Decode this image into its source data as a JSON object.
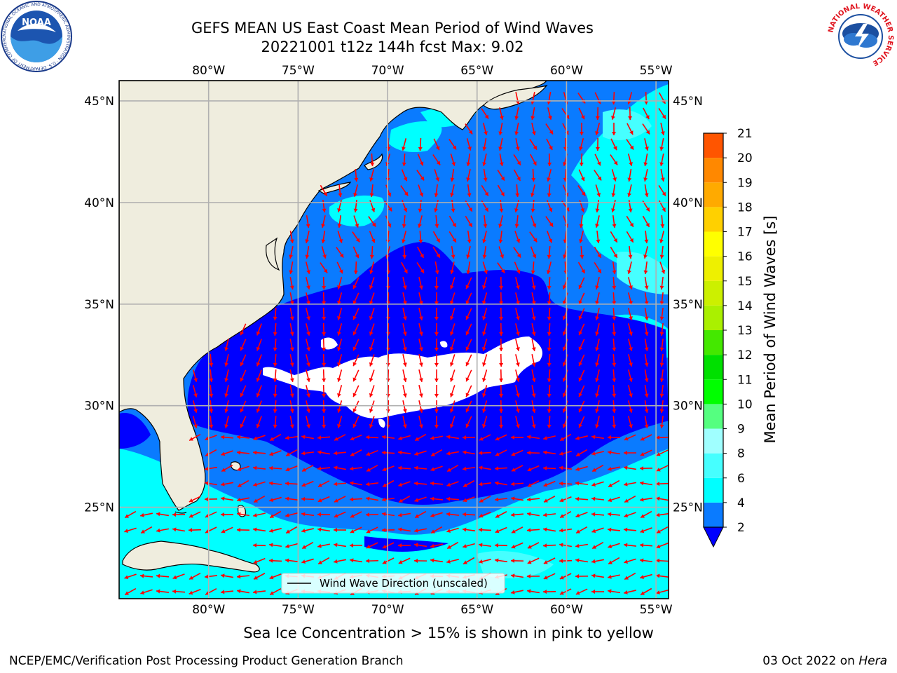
{
  "title": {
    "line1": "GEFS MEAN US East Coast Mean Period of Wind Waves",
    "line2": "20221001 t12z 144h fcst   Max: 9.02"
  },
  "map": {
    "lon_labels": [
      "80°W",
      "75°W",
      "70°W",
      "65°W",
      "60°W",
      "55°W"
    ],
    "lon_values": [
      -80,
      -75,
      -70,
      -65,
      -60,
      -55
    ],
    "lat_labels": [
      "45°N",
      "40°N",
      "35°N",
      "30°N",
      "25°N"
    ],
    "lat_values": [
      45,
      40,
      35,
      30,
      25
    ],
    "extent": {
      "lon_min": -85,
      "lon_max": -54.3,
      "lat_min": 20.5,
      "lat_max": 46
    },
    "legend_label": "Wind Wave Direction (unscaled)",
    "colors": {
      "land": "#efedde",
      "ocean_lt2": "#0000ff",
      "ocean_2_4": "#0a7bff",
      "ocean_4_6": "#00ffff",
      "arrow": "#ff0000",
      "gridline": "#b0b0b0"
    }
  },
  "colorbar": {
    "label": "Mean Period of Wind Waves [s]",
    "ticks": [
      "2",
      "4",
      "6",
      "8",
      "9",
      "10",
      "11",
      "12",
      "13",
      "14",
      "15",
      "16",
      "17",
      "18",
      "19",
      "20",
      "21"
    ],
    "colors": [
      "#0a7bff",
      "#00ffff",
      "#46ffff",
      "#a0ffff",
      "#55ff80",
      "#00ff00",
      "#00e000",
      "#44e800",
      "#aaf000",
      "#ccf000",
      "#eef000",
      "#ffff00",
      "#ffd000",
      "#ffaa00",
      "#ff8800",
      "#ff5500",
      "#ff2a00",
      "#ff0000"
    ],
    "underflow_color": "#0000ff"
  },
  "bottom_note": "Sea Ice Concentration > 15% is shown in pink to yellow",
  "footer": {
    "left": "NCEP/EMC/Verification Post Processing Product Generation Branch",
    "right_date": "03 Oct 2022 on ",
    "right_host": "Hera"
  },
  "logos": {
    "left": {
      "icon": "noaa-logo",
      "text": "NOAA",
      "ring_text": "NATIONAL OCEANIC AND ATMOSPHERIC ADMINISTRATION · U.S. DEPARTMENT OF COMMERCE"
    },
    "right": {
      "icon": "nws-logo",
      "ring_text": "NATIONAL WEATHER SERVICE"
    }
  }
}
